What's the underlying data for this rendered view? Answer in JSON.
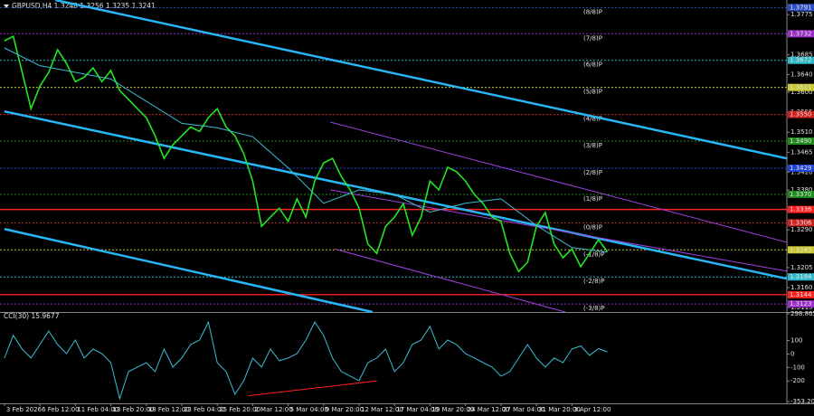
{
  "chart_data": [
    {
      "type": "line",
      "title": "GBPUSD,H4 1.3248 1.3256 1.3235 1.3241",
      "xlim": [
        -2,
        353
      ],
      "ylim": [
        1.3105,
        1.3808
      ],
      "yticks": [
        1.3775,
        {
          "value": 1.373,
          "label": "1.3730"
        },
        1.3685,
        {
          "value": 1.364,
          "label": "1.3640"
        },
        {
          "value": 1.36,
          "label": "1.3600"
        },
        1.3555,
        {
          "value": 1.351,
          "label": "1.3510"
        },
        1.3465,
        {
          "value": 1.342,
          "label": "1.3420"
        },
        {
          "value": 1.338,
          "label": "1.3380"
        },
        1.3335,
        {
          "value": 1.329,
          "label": "1.3290"
        },
        1.3245,
        1.3205,
        {
          "value": 1.316,
          "label": "1.3160"
        },
        1.3115
      ],
      "x": [
        0,
        4,
        8,
        12,
        16,
        20,
        24,
        28,
        32,
        36,
        40,
        44,
        48,
        52,
        56,
        60,
        64,
        68,
        72,
        76,
        80,
        84,
        88,
        92,
        96,
        100,
        104,
        108,
        112,
        116,
        120,
        124,
        128,
        132,
        136,
        140,
        144,
        148,
        152,
        156,
        160,
        164,
        168,
        172,
        176,
        180,
        184,
        188,
        192,
        196,
        200,
        204,
        208,
        212,
        216,
        220,
        224,
        228,
        232,
        236,
        240,
        244,
        248,
        252,
        256,
        260,
        264,
        268,
        272
      ],
      "series": [
        {
          "color": "#22e622",
          "values": [
            1.3716,
            1.3726,
            1.3645,
            1.3563,
            1.3614,
            1.3645,
            1.3696,
            1.3665,
            1.3624,
            1.3634,
            1.3655,
            1.3624,
            1.3649,
            1.3604,
            1.3584,
            1.3563,
            1.3543,
            1.3502,
            1.3451,
            1.3482,
            1.3502,
            1.3522,
            1.3512,
            1.3543,
            1.3563,
            1.3522,
            1.3502,
            1.3461,
            1.34,
            1.3298,
            1.3319,
            1.3339,
            1.3309,
            1.336,
            1.3319,
            1.34,
            1.3441,
            1.3451,
            1.341,
            1.338,
            1.3339,
            1.3258,
            1.3237,
            1.3298,
            1.3319,
            1.3349,
            1.3278,
            1.3319,
            1.34,
            1.338,
            1.3431,
            1.3421,
            1.34,
            1.337,
            1.3349,
            1.3319,
            1.3309,
            1.3237,
            1.3196,
            1.3217,
            1.3298,
            1.3329,
            1.3258,
            1.3227,
            1.3247,
            1.3207,
            1.3237,
            1.3268,
            1.3241
          ]
        },
        {
          "color": "#3cbcd0",
          "x": [
            0,
            16,
            32,
            48,
            64,
            80,
            96,
            112,
            128,
            144,
            160,
            176,
            192,
            208,
            224,
            240,
            256,
            272
          ],
          "values": [
            1.37,
            1.366,
            1.3645,
            1.363,
            1.358,
            1.353,
            1.352,
            1.35,
            1.343,
            1.335,
            1.338,
            1.337,
            1.333,
            1.335,
            1.336,
            1.33,
            1.325,
            1.324
          ]
        }
      ],
      "levels": [
        {
          "value": 1.3791,
          "label": "1.3791",
          "mark": "(8/8)P",
          "color": "#2f4fc8",
          "style": "dash"
        },
        {
          "value": 1.3732,
          "label": "1.3732",
          "mark": "(7/8)P",
          "color": "#9b30c8",
          "style": "dash"
        },
        {
          "value": 1.3672,
          "label": "1.3672",
          "mark": "(6/8)P",
          "color": "#2fb8c8",
          "style": "dash"
        },
        {
          "value": 1.3611,
          "label": "1.3611",
          "mark": "(5/8)P",
          "color": "#c8c830",
          "style": "dash"
        },
        {
          "value": 1.355,
          "label": "1.3550",
          "mark": "(4/8)P",
          "color": "#d02020",
          "style": "dash"
        },
        {
          "value": 1.349,
          "label": "1.3490",
          "mark": "(3/8)P",
          "color": "#208a20",
          "style": "dash"
        },
        {
          "value": 1.3429,
          "label": "1.3429",
          "mark": "(2/8)P",
          "color": "#2040d8",
          "style": "dash"
        },
        {
          "value": 1.337,
          "label": "1.3370",
          "mark": "(1/8)P",
          "color": "#208a20",
          "style": "dash"
        },
        {
          "value": 1.3336,
          "label": "1.3336",
          "color": "#ff2020",
          "style": "solid"
        },
        {
          "value": 1.3306,
          "label": "1.3306",
          "mark": "(0/8)P",
          "color": "#d02020",
          "style": "dash"
        },
        {
          "value": 1.3245,
          "label": "1.3245",
          "mark": "(-1/8)P",
          "color": "#c8c830",
          "style": "dash"
        },
        {
          "value": 1.3184,
          "label": "1.3184",
          "mark": "(-2/8)P",
          "color": "#2fb8c8",
          "style": "dash"
        },
        {
          "value": 1.3144,
          "label": "1.3144",
          "color": "#ff2020",
          "style": "solid"
        },
        {
          "value": 1.3123,
          "label": "1.3123",
          "mark": "(-3/8)P",
          "color": "#9b30c8",
          "style": "dash"
        }
      ],
      "trendlines": [
        {
          "x": [
            23,
            353
          ],
          "y": [
            1.3808,
            1.3451
          ],
          "color": "#29b6f6",
          "style": "thick"
        },
        {
          "x": [
            0,
            353
          ],
          "y": [
            1.3557,
            1.318
          ],
          "color": "#29b6f6",
          "style": "thick"
        },
        {
          "x": [
            0,
            166
          ],
          "y": [
            1.3292,
            1.3105
          ],
          "color": "#29b6f6",
          "style": "thick"
        },
        {
          "x": [
            147,
            353
          ],
          "y": [
            1.3533,
            1.3262
          ],
          "color": "#a040e0",
          "style": "thin"
        },
        {
          "x": [
            147,
            353
          ],
          "y": [
            1.338,
            1.3197
          ],
          "color": "#a040e0",
          "style": "thin"
        },
        {
          "x": [
            149,
            253
          ],
          "y": [
            1.3247,
            1.3105
          ],
          "color": "#a040e0",
          "style": "thin"
        }
      ]
    },
    {
      "type": "line",
      "title": "CCI(30) 15.9677",
      "xlim": [
        -2,
        353
      ],
      "ylim": [
        -353.207,
        298.8655
      ],
      "yticks": [
        298.8655,
        100,
        0,
        -100,
        -200,
        -353.207
      ],
      "xticks": [
        {
          "value": 0,
          "label": "3 Feb 2026"
        },
        {
          "value": 16,
          "label": "6 Feb 12:00"
        },
        {
          "value": 32,
          "label": "11 Feb 04:00"
        },
        {
          "value": 48,
          "label": "13 Feb 20:00"
        },
        {
          "value": 64,
          "label": "18 Feb 12:00"
        },
        {
          "value": 80,
          "label": "23 Feb 04:00"
        },
        {
          "value": 96,
          "label": "25 Feb 20:00"
        },
        {
          "value": 112,
          "label": "2 Mar 12:00"
        },
        {
          "value": 128,
          "label": "5 Mar 04:00"
        },
        {
          "value": 144,
          "label": "9 Mar 20:00"
        },
        {
          "value": 160,
          "label": "12 Mar 12:00"
        },
        {
          "value": 176,
          "label": "17 Mar 04:00"
        },
        {
          "value": 192,
          "label": "19 Mar 20:00"
        },
        {
          "value": 208,
          "label": "24 Mar 12:00"
        },
        {
          "value": 224,
          "label": "27 Mar 04:00"
        },
        {
          "value": 240,
          "label": "31 Mar 20:00"
        },
        {
          "value": 256,
          "label": "3 Apr 12:00"
        }
      ],
      "x": [
        0,
        4,
        8,
        12,
        16,
        20,
        24,
        28,
        32,
        36,
        40,
        44,
        48,
        52,
        56,
        60,
        64,
        68,
        72,
        76,
        80,
        84,
        88,
        92,
        96,
        100,
        104,
        108,
        112,
        116,
        120,
        124,
        128,
        132,
        136,
        140,
        144,
        148,
        152,
        156,
        160,
        164,
        168,
        172,
        176,
        180,
        184,
        188,
        192,
        196,
        200,
        204,
        208,
        212,
        216,
        220,
        224,
        228,
        232,
        236,
        240,
        244,
        248,
        252,
        256,
        260,
        264,
        268,
        272
      ],
      "series": [
        {
          "color": "#3cbcd0",
          "values": [
            -30,
            138,
            37,
            -30,
            70,
            171,
            70,
            3,
            104,
            -30,
            37,
            3,
            -64,
            -332,
            -131,
            -97,
            -64,
            -131,
            37,
            -97,
            -30,
            70,
            104,
            238,
            -64,
            -131,
            -299,
            -198,
            -30,
            -97,
            37,
            -50,
            -30,
            3,
            104,
            238,
            138,
            -30,
            -131,
            -164,
            -198,
            -64,
            -30,
            37,
            -131,
            -64,
            70,
            104,
            205,
            37,
            104,
            70,
            3,
            -30,
            -64,
            -97,
            -164,
            -131,
            -30,
            70,
            -30,
            -97,
            -30,
            -64,
            37,
            60,
            -10,
            40,
            15.9677
          ]
        }
      ],
      "trendlines": [
        {
          "x": [
            110,
            168
          ],
          "y": [
            -310,
            -200
          ],
          "color": "#ff2020",
          "style": "thin"
        }
      ]
    }
  ]
}
